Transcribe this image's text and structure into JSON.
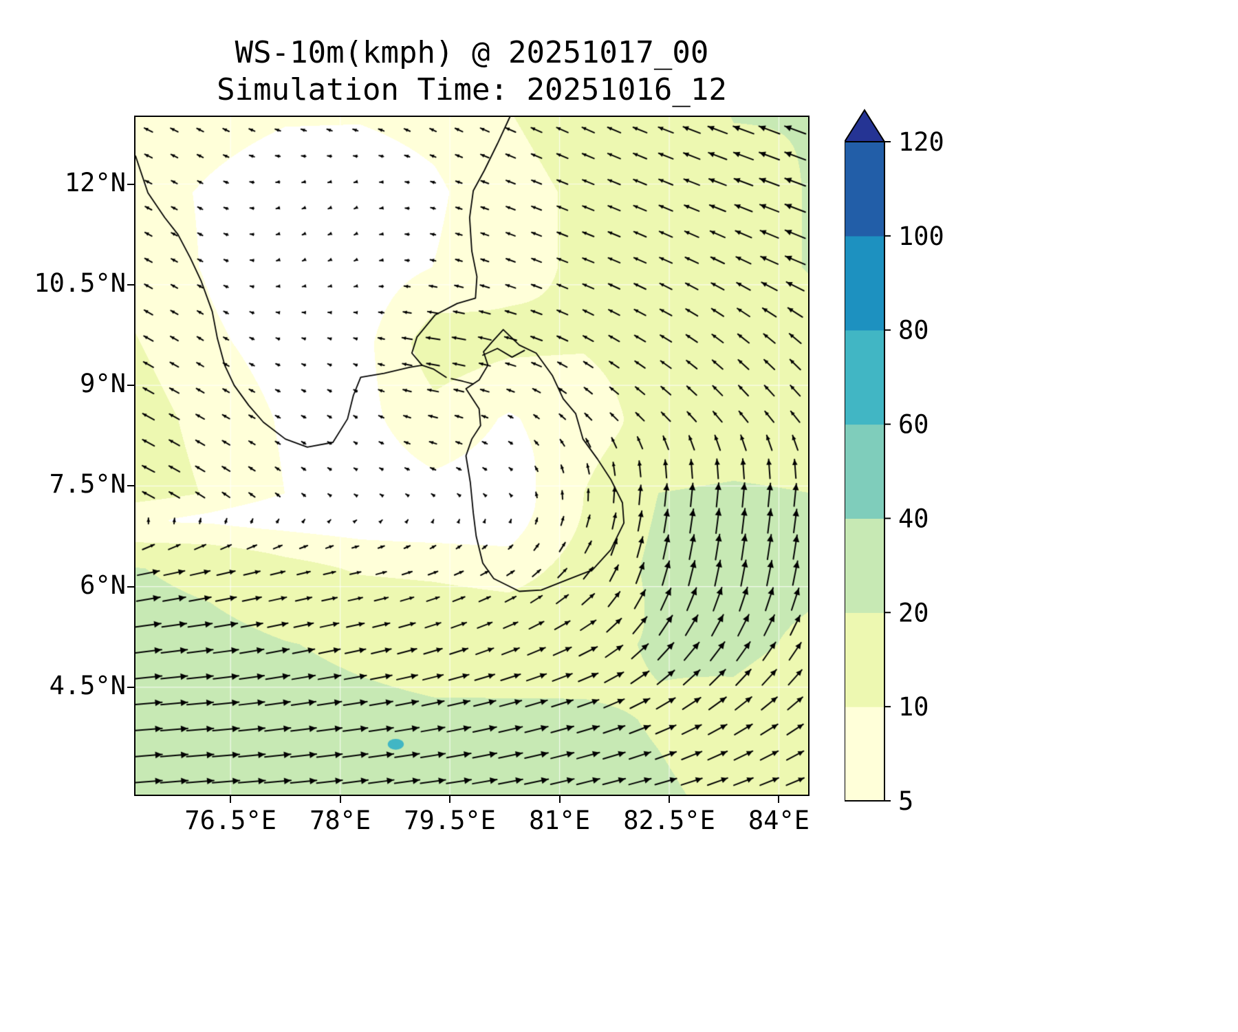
{
  "chart_data": {
    "type": "heatmap",
    "title": "WS-10m(kmph) @ 20251017_00",
    "subtitle": "Simulation Time: 20251016_12",
    "variable": "WS-10m",
    "units": "kmph",
    "valid_time": "20251017_00",
    "simulation_time": "20251016_12",
    "lon_range": [
      75.2,
      84.4
    ],
    "lat_range": [
      2.9,
      13.0
    ],
    "x_ticks": [
      {
        "value": 76.5,
        "label": "76.5°E"
      },
      {
        "value": 78.0,
        "label": "78°E"
      },
      {
        "value": 79.5,
        "label": "79.5°E"
      },
      {
        "value": 81.0,
        "label": "81°E"
      },
      {
        "value": 82.5,
        "label": "82.5°E"
      },
      {
        "value": 84.0,
        "label": "84°E"
      }
    ],
    "y_ticks": [
      {
        "value": 12.0,
        "label": "12°N"
      },
      {
        "value": 10.5,
        "label": "10.5°N"
      },
      {
        "value": 9.0,
        "label": "9°N"
      },
      {
        "value": 7.5,
        "label": "7.5°N"
      },
      {
        "value": 6.0,
        "label": "6°N"
      },
      {
        "value": 4.5,
        "label": "4.5°N"
      }
    ],
    "colorbar": {
      "levels": [
        5,
        10,
        20,
        40,
        60,
        80,
        100,
        120
      ],
      "colors": [
        "#ffffd9",
        "#edf8b1",
        "#c7e9b4",
        "#7fcdbb",
        "#41b6c4",
        "#1d91c0",
        "#225ea8"
      ],
      "under_color": "#ffffff",
      "over_color": "#253494",
      "extend": "max"
    },
    "grid": {
      "lons": [
        75.2,
        76.22,
        77.24,
        78.27,
        79.29,
        80.31,
        81.33,
        82.36,
        83.38,
        84.4
      ],
      "lats": [
        13.0,
        11.88,
        10.76,
        9.63,
        8.51,
        7.39,
        6.27,
        5.14,
        4.02,
        2.9
      ],
      "u": [
        [
          -8,
          -6,
          -5,
          -5,
          -6,
          -9,
          -11,
          -13,
          -19,
          -19
        ],
        [
          -6,
          -4,
          -3,
          -2,
          -4,
          -8,
          -10,
          -12,
          -16,
          -19
        ],
        [
          -7,
          -4,
          -2,
          -2,
          -5,
          -8,
          -10,
          -11,
          -12,
          -19
        ],
        [
          -9,
          -5,
          -3,
          -3,
          -13,
          -11,
          -9,
          -10,
          -10,
          -10
        ],
        [
          -11,
          -7,
          -4,
          -3,
          -8,
          -4,
          -6,
          -8,
          -8,
          -8
        ],
        [
          -12,
          -8,
          -4,
          -2,
          -3,
          -2,
          0,
          2,
          2,
          2
        ],
        [
          20,
          17,
          12,
          9,
          8,
          6,
          8,
          6,
          4,
          4
        ],
        [
          24,
          23,
          20,
          18,
          16,
          15,
          16,
          14,
          12,
          10
        ],
        [
          25,
          24,
          23,
          22,
          21,
          21,
          20,
          18,
          16,
          14
        ],
        [
          25,
          25,
          24,
          23,
          23,
          22,
          21,
          20,
          18,
          16
        ]
      ],
      "v": [
        [
          4,
          3,
          2,
          2,
          3,
          4,
          5,
          5,
          7,
          7
        ],
        [
          3,
          2,
          -1,
          -1,
          1,
          3,
          4,
          5,
          6,
          7
        ],
        [
          4,
          2,
          -1,
          -1,
          1,
          3,
          4,
          5,
          6,
          8
        ],
        [
          5,
          3,
          1,
          1,
          2,
          3,
          5,
          6,
          8,
          9
        ],
        [
          6,
          4,
          2,
          2,
          2,
          2,
          6,
          8,
          10,
          10
        ],
        [
          6,
          5,
          3,
          1,
          2,
          2,
          10,
          20,
          22,
          20
        ],
        [
          4,
          4,
          3,
          2,
          3,
          4,
          10,
          22,
          24,
          22
        ],
        [
          3,
          3,
          4,
          4,
          5,
          6,
          8,
          16,
          18,
          16
        ],
        [
          2,
          2,
          3,
          3,
          4,
          5,
          6,
          8,
          10,
          10
        ],
        [
          2,
          2,
          2,
          3,
          3,
          4,
          5,
          5,
          6,
          6
        ]
      ]
    },
    "quiver": {
      "nx": 26,
      "ny": 26,
      "scale": 1.6,
      "color": "#000000"
    },
    "spot": {
      "lon": 78.76,
      "lat": 3.65,
      "rlon": 0.11,
      "rlat": 0.08,
      "color": "#41b6c4"
    },
    "coastlines": [
      [
        [
          75.2,
          12.42
        ],
        [
          75.37,
          11.87
        ],
        [
          75.6,
          11.5
        ],
        [
          75.78,
          11.25
        ],
        [
          75.95,
          10.9
        ],
        [
          76.1,
          10.55
        ],
        [
          76.25,
          10.1
        ],
        [
          76.32,
          9.7
        ],
        [
          76.42,
          9.3
        ],
        [
          76.55,
          9.0
        ],
        [
          76.75,
          8.7
        ],
        [
          76.95,
          8.45
        ],
        [
          77.25,
          8.2
        ],
        [
          77.55,
          8.08
        ],
        [
          77.9,
          8.15
        ],
        [
          78.1,
          8.5
        ],
        [
          78.18,
          8.85
        ],
        [
          78.28,
          9.12
        ],
        [
          78.6,
          9.18
        ],
        [
          78.95,
          9.27
        ],
        [
          79.12,
          9.3
        ],
        [
          78.98,
          9.48
        ],
        [
          79.05,
          9.72
        ],
        [
          79.3,
          10.05
        ],
        [
          79.6,
          10.22
        ],
        [
          79.85,
          10.3
        ],
        [
          79.87,
          10.62
        ],
        [
          79.8,
          11.0
        ],
        [
          79.77,
          11.5
        ],
        [
          79.82,
          11.9
        ],
        [
          79.97,
          12.2
        ],
        [
          80.15,
          12.6
        ],
        [
          80.32,
          13.0
        ]
      ],
      [
        [
          79.12,
          9.3
        ],
        [
          79.28,
          9.24
        ],
        [
          79.45,
          9.12
        ]
      ],
      [
        [
          79.52,
          9.1
        ],
        [
          79.68,
          9.06
        ],
        [
          79.82,
          9.02
        ]
      ],
      [
        [
          80.23,
          9.83
        ],
        [
          80.45,
          9.6
        ],
        [
          80.68,
          9.48
        ],
        [
          80.9,
          9.15
        ],
        [
          81.05,
          8.8
        ],
        [
          81.22,
          8.58
        ],
        [
          81.32,
          8.2
        ],
        [
          81.52,
          7.9
        ],
        [
          81.7,
          7.6
        ],
        [
          81.86,
          7.25
        ],
        [
          81.88,
          6.95
        ],
        [
          81.7,
          6.55
        ],
        [
          81.45,
          6.25
        ],
        [
          81.1,
          6.1
        ],
        [
          80.75,
          5.95
        ],
        [
          80.45,
          5.93
        ],
        [
          80.1,
          6.12
        ],
        [
          79.95,
          6.35
        ],
        [
          79.86,
          6.75
        ],
        [
          79.82,
          7.1
        ],
        [
          79.78,
          7.55
        ],
        [
          79.72,
          7.95
        ],
        [
          79.8,
          8.2
        ],
        [
          79.92,
          8.4
        ],
        [
          79.9,
          8.65
        ],
        [
          79.72,
          8.95
        ],
        [
          79.9,
          9.08
        ],
        [
          80.02,
          9.3
        ],
        [
          79.96,
          9.5
        ],
        [
          80.08,
          9.65
        ],
        [
          80.23,
          9.83
        ]
      ],
      [
        [
          79.95,
          9.45
        ],
        [
          80.15,
          9.55
        ],
        [
          80.35,
          9.42
        ],
        [
          80.52,
          9.52
        ]
      ]
    ],
    "gridline_color": "rgba(255,255,255,0.75)"
  }
}
